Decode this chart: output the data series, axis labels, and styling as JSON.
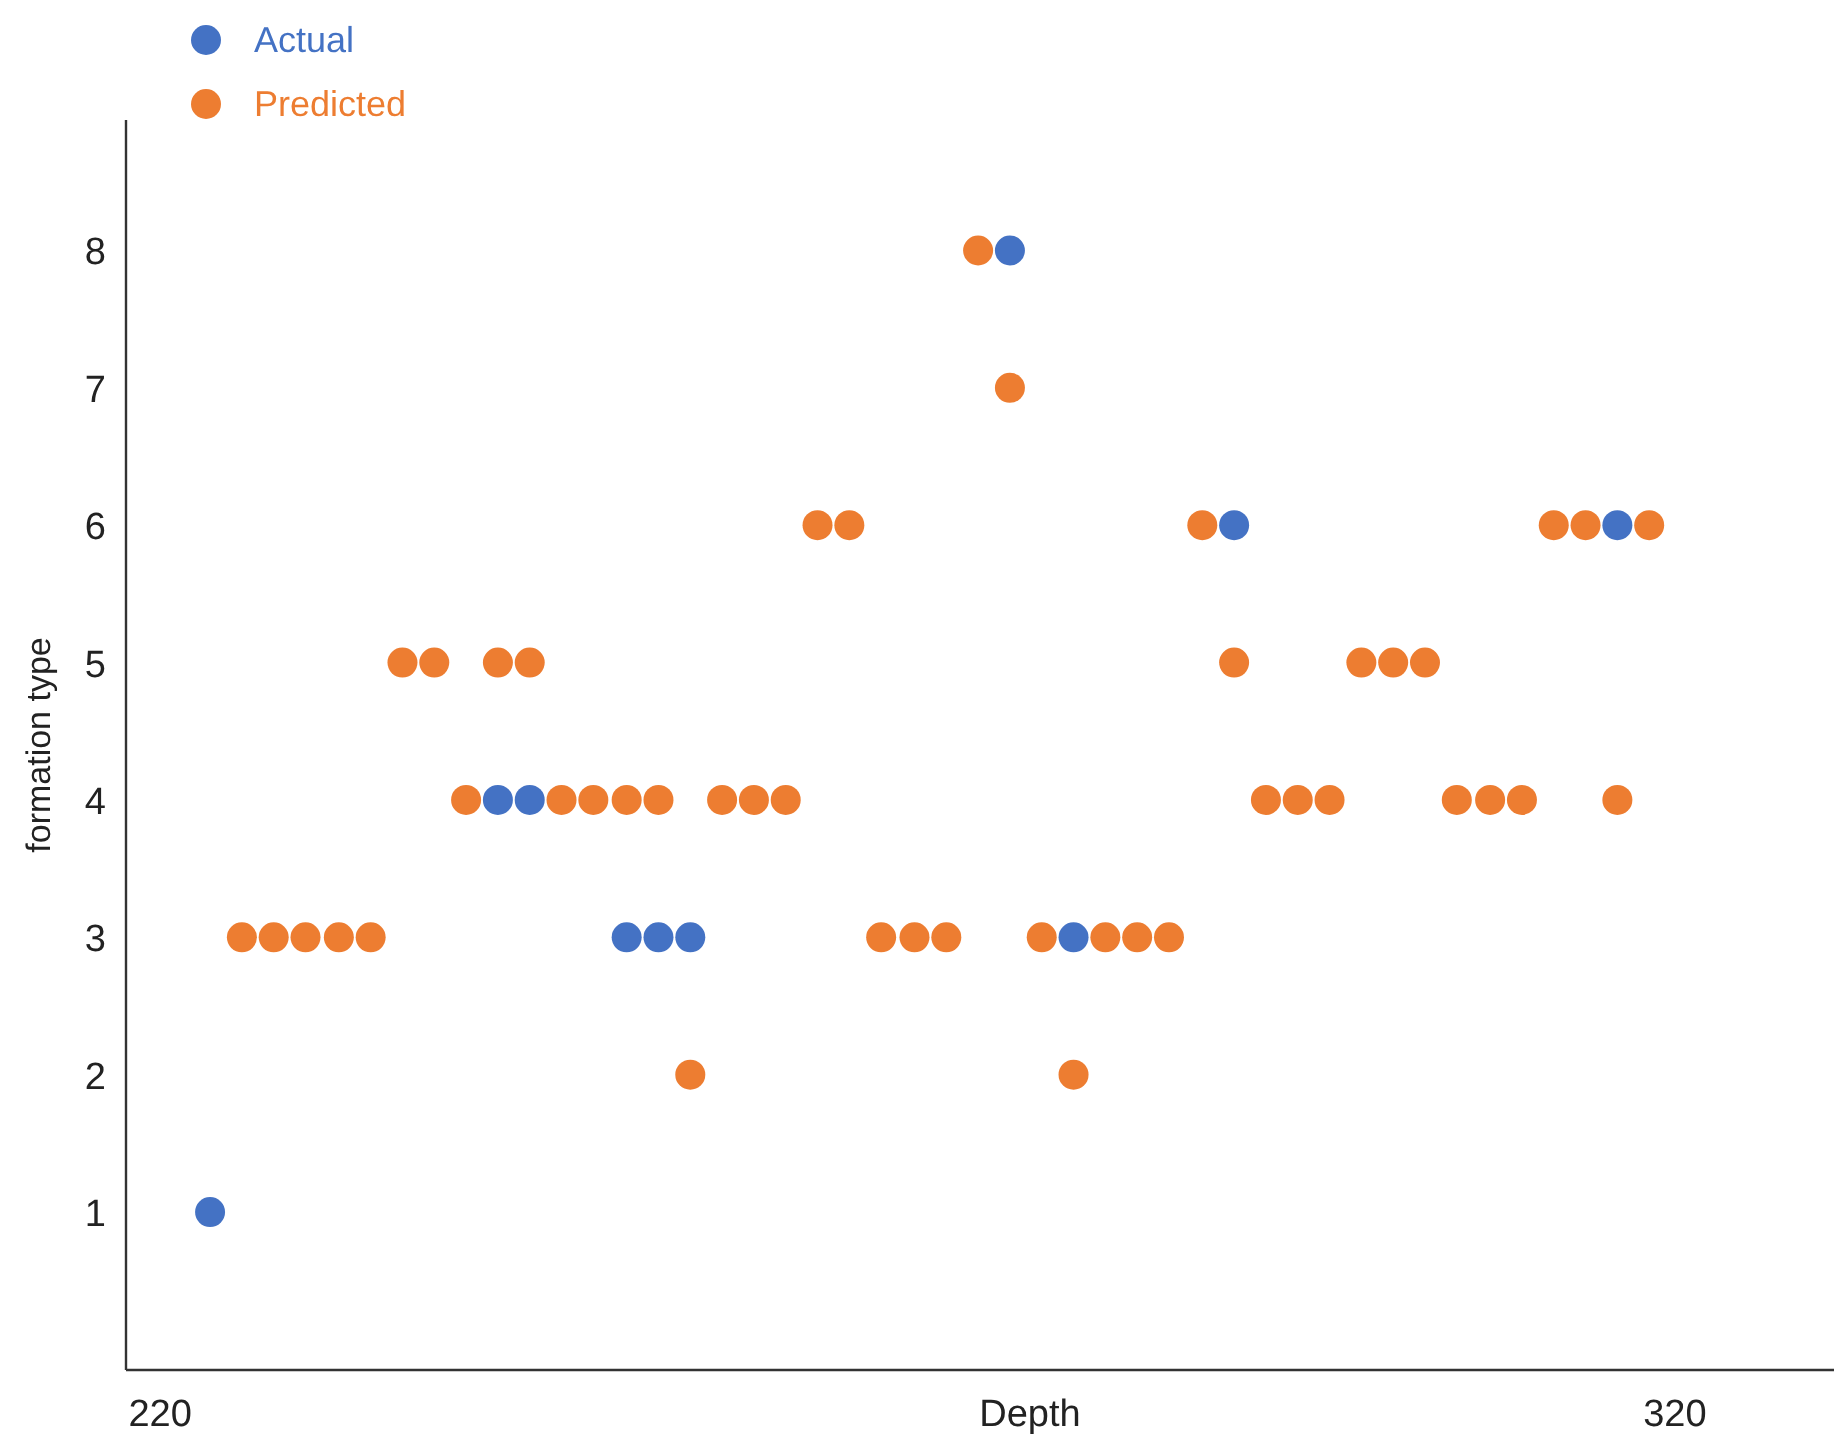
{
  "chart_data": {
    "type": "scatter",
    "xlabel": "Depth",
    "ylabel": "formation type",
    "xlim": [
      217.75,
      330.5
    ],
    "xticks": [
      220,
      320
    ],
    "ylim": [
      -0.15,
      8.95
    ],
    "yticks": [
      1,
      2,
      3,
      4,
      5,
      6,
      7,
      8
    ],
    "grid": false,
    "legend": "top left",
    "marker": "circle",
    "series": [
      {
        "name": "Actual",
        "color": "#4472c4",
        "x": [
          223.3,
          242.3,
          244.4,
          250.8,
          252.9,
          255.0,
          276.1,
          280.3,
          290.9,
          316.2
        ],
        "values": [
          1,
          4,
          4,
          3,
          3,
          3,
          8,
          3,
          6,
          6
        ]
      },
      {
        "name": "Predicted",
        "color": "#ed7d31",
        "x": [
          225.4,
          227.5,
          229.6,
          231.8,
          233.9,
          236.0,
          238.1,
          240.2,
          242.3,
          244.4,
          246.5,
          248.6,
          250.8,
          252.9,
          255.0,
          257.1,
          259.2,
          261.3,
          263.4,
          265.5,
          267.6,
          269.8,
          271.9,
          274.0,
          276.1,
          278.2,
          280.3,
          282.4,
          284.5,
          286.6,
          288.8,
          290.9,
          293.0,
          295.1,
          297.2,
          299.3,
          301.4,
          303.5,
          305.6,
          307.8,
          309.9,
          312.0,
          314.1,
          316.2,
          318.3
        ],
        "values": [
          3,
          3,
          3,
          3,
          3,
          5,
          5,
          4,
          5,
          5,
          4,
          4,
          4,
          4,
          2,
          4,
          4,
          4,
          6,
          6,
          3,
          3,
          3,
          8,
          7,
          3,
          2,
          3,
          3,
          3,
          6,
          5,
          4,
          4,
          4,
          5,
          5,
          5,
          4,
          4,
          4,
          6,
          6,
          4,
          6
        ]
      }
    ]
  }
}
